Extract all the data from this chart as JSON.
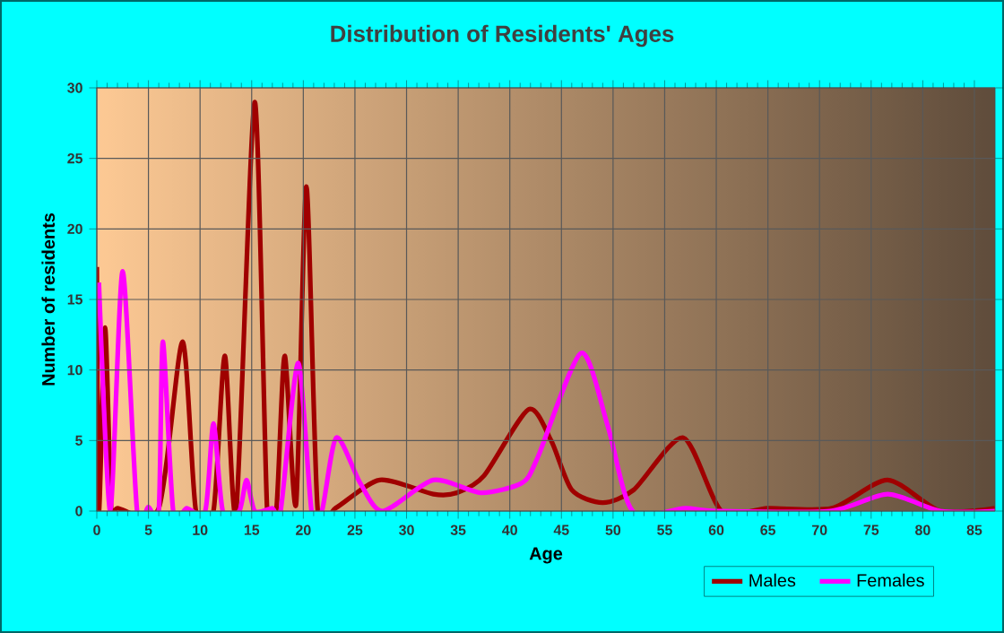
{
  "chart_data": {
    "type": "line",
    "title": "Distribution of Residents' Ages",
    "xlabel": "Age",
    "ylabel": "Number of residents",
    "xlim": [
      0,
      87
    ],
    "xticks": [
      0,
      5,
      10,
      15,
      20,
      25,
      30,
      35,
      40,
      45,
      50,
      55,
      60,
      65,
      70,
      75,
      80,
      85
    ],
    "ylim": [
      0,
      30
    ],
    "yticks": [
      0,
      5,
      10,
      15,
      20,
      25,
      30
    ],
    "grid": true,
    "legend": "bottom right",
    "marker": "none",
    "line_style": "solid",
    "series": [
      {
        "name": "Males",
        "color": "#a00000",
        "x": [
          0,
          0.2,
          0.8,
          1.4,
          2,
          6,
          8.3,
          9.6,
          11.3,
          12.4,
          13.5,
          15.3,
          16.5,
          17.4,
          18.2,
          19.3,
          20.3,
          21.4,
          23.1,
          27.4,
          32.6,
          34.9,
          37.5,
          41.8,
          44,
          46,
          49,
          52,
          56.8,
          60.5,
          65,
          71.2,
          76.6,
          81.7,
          87
        ],
        "values": [
          17.3,
          0,
          13,
          0,
          0.2,
          0.2,
          12,
          0,
          0,
          11,
          0,
          29,
          0,
          0.2,
          11,
          0.5,
          23,
          0,
          0.2,
          2.2,
          1.2,
          1.3,
          2.5,
          7.2,
          5,
          1.5,
          0.6,
          1.5,
          5.2,
          0,
          0.2,
          0.2,
          2.2,
          0,
          0.2
        ]
      },
      {
        "name": "Females",
        "color": "#ff00ff",
        "x": [
          0.2,
          1.3,
          2.5,
          3.9,
          5,
          6,
          6.4,
          7.4,
          8.7,
          10.5,
          11.3,
          12.2,
          13.8,
          14.5,
          15.3,
          17,
          17.8,
          19.5,
          20.8,
          21.8,
          23.2,
          25.5,
          27.7,
          32.6,
          37.2,
          41.2,
          42.7,
          46.9,
          49.5,
          51.9,
          57,
          60,
          71,
          76.6,
          81.7,
          87
        ],
        "values": [
          16.2,
          0,
          17,
          0,
          0.3,
          0,
          12,
          0,
          0.2,
          0,
          6.2,
          0,
          0,
          2.2,
          0,
          0.2,
          0,
          10.5,
          0,
          0,
          5.2,
          2,
          0,
          2.2,
          1.3,
          2,
          3.8,
          11.2,
          6,
          0,
          0.2,
          0,
          0,
          1.2,
          0,
          0
        ]
      }
    ]
  }
}
